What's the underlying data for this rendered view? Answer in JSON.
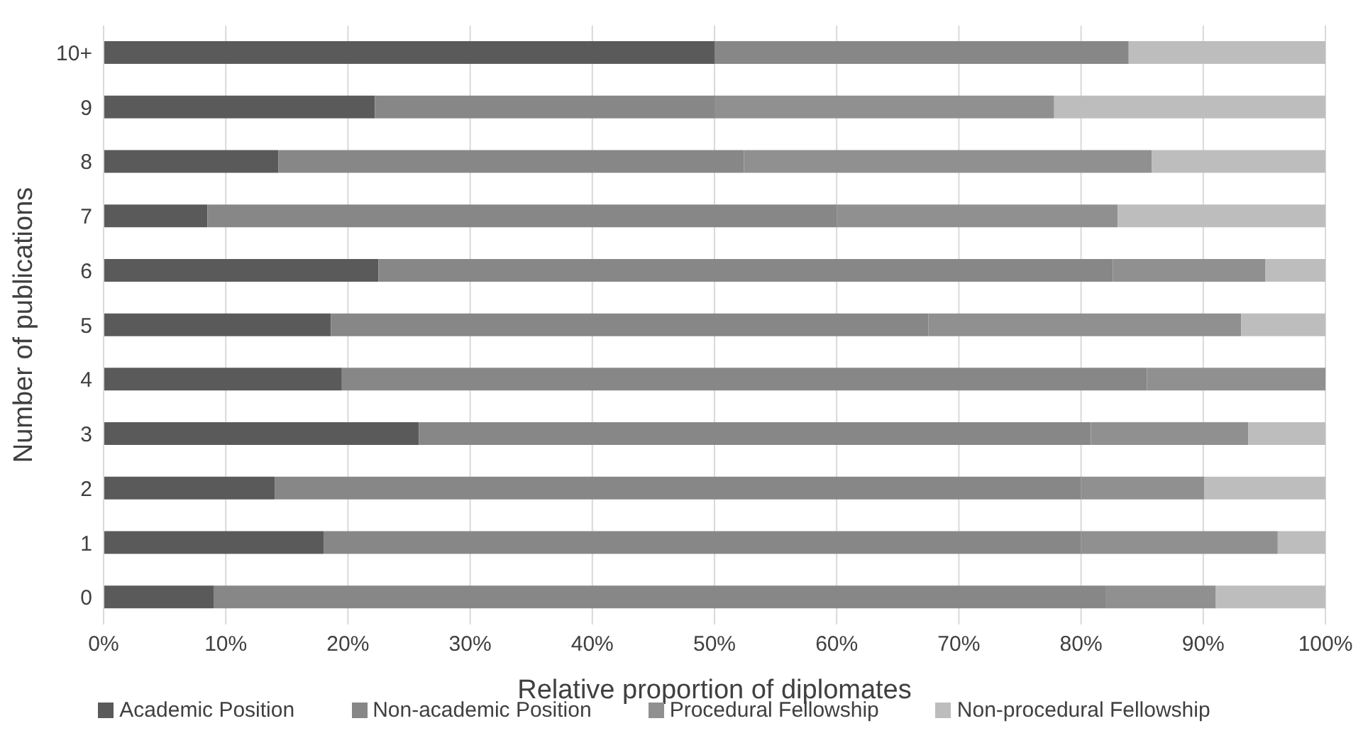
{
  "chart_data": {
    "type": "bar",
    "orientation": "horizontal",
    "stacked": true,
    "xlabel": "Relative proportion of diplomates",
    "ylabel": "Number of publications",
    "categories": [
      "10+",
      "9",
      "8",
      "7",
      "6",
      "5",
      "4",
      "3",
      "2",
      "1",
      "0"
    ],
    "series": [
      {
        "name": "Academic Position",
        "color": "#5a5a5a",
        "values": [
          50.0,
          22.2,
          14.3,
          8.5,
          22.5,
          18.6,
          19.5,
          25.8,
          14.0,
          18.0,
          9.0
        ]
      },
      {
        "name": "Non-academic Position",
        "color": "#878787",
        "values": [
          33.9,
          27.8,
          38.1,
          51.5,
          60.1,
          48.9,
          65.9,
          55.0,
          66.0,
          62.0,
          73.0
        ]
      },
      {
        "name": "Procedural Fellowship",
        "color": "#909090",
        "values": [
          0,
          27.8,
          33.4,
          23.0,
          12.5,
          25.6,
          14.6,
          12.9,
          10.1,
          16.1,
          9.0
        ]
      },
      {
        "name": "Non-procedural Fellowship",
        "color": "#bdbdbd",
        "values": [
          16.1,
          22.2,
          14.2,
          17.0,
          4.9,
          6.9,
          0,
          6.3,
          9.9,
          3.9,
          9.0
        ]
      }
    ],
    "xlim": [
      0,
      100
    ],
    "xticks": [
      {
        "value": 0,
        "label": "0%"
      },
      {
        "value": 10,
        "label": "10%"
      },
      {
        "value": 20,
        "label": "20%"
      },
      {
        "value": 30,
        "label": "30%"
      },
      {
        "value": 40,
        "label": "40%"
      },
      {
        "value": 50,
        "label": "50%"
      },
      {
        "value": 60,
        "label": "60%"
      },
      {
        "value": 70,
        "label": "70%"
      },
      {
        "value": 80,
        "label": "80%"
      },
      {
        "value": 90,
        "label": "90%"
      },
      {
        "value": 100,
        "label": "100%"
      }
    ],
    "grid": "x",
    "legend": "bottom"
  }
}
